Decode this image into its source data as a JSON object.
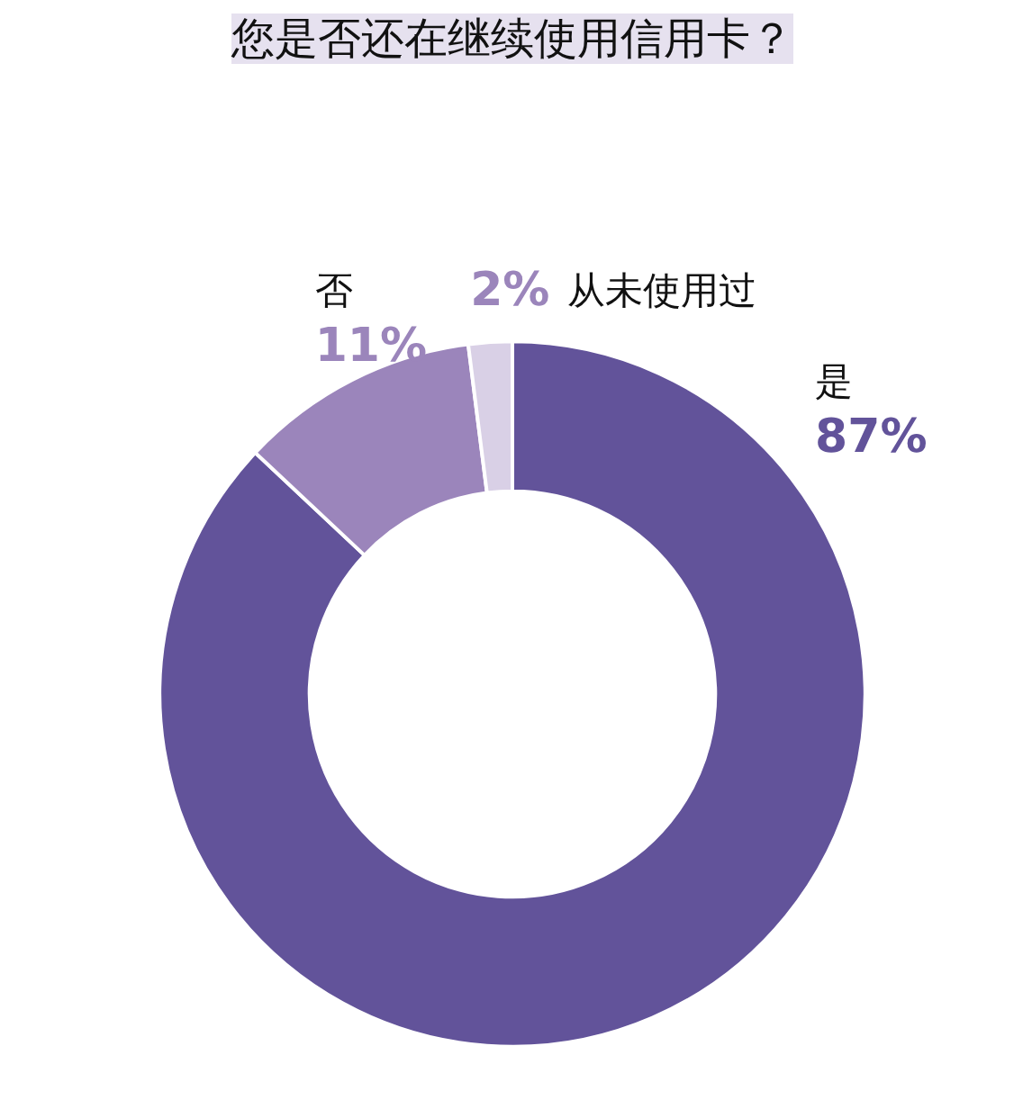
{
  "chart_data": {
    "type": "donut",
    "title": "您是否还在继续使用信用卡？",
    "categories": [
      "是",
      "否",
      "从未使用过"
    ],
    "values": [
      87,
      11,
      2
    ],
    "colors": [
      "#62539a",
      "#9b85bb",
      "#d9d0e6"
    ],
    "value_labels": [
      "87%",
      "11%",
      "2%"
    ]
  }
}
